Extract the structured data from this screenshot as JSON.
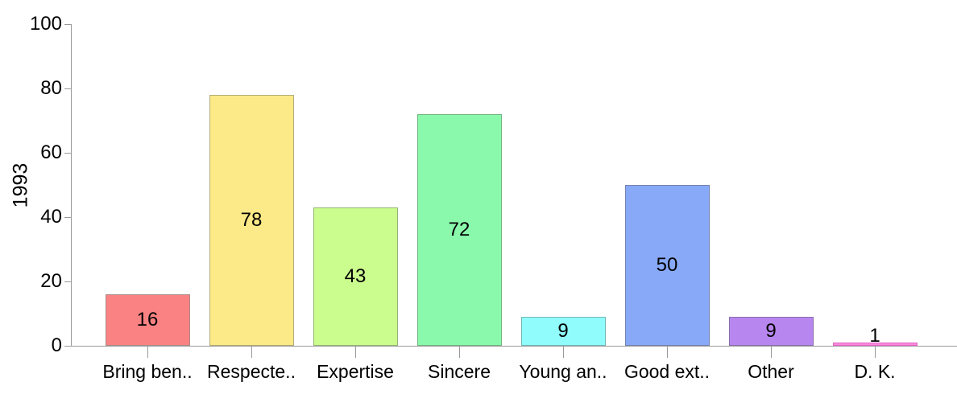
{
  "chart_data": {
    "type": "bar",
    "title": "",
    "xlabel": "",
    "ylabel": "1993",
    "ylim": [
      0,
      100
    ],
    "yticks": [
      0,
      20,
      40,
      60,
      80,
      100
    ],
    "grid": false,
    "legend": false,
    "categories": [
      "Bring ben..",
      "Respecte..",
      "Expertise",
      "Sincere",
      "Young an..",
      "Good ext..",
      "Other",
      "D. K."
    ],
    "values": [
      16,
      78,
      43,
      72,
      9,
      50,
      9,
      1
    ],
    "bar_colors": [
      "#FB8282",
      "#FCE987",
      "#CBFC8E",
      "#8AF9AB",
      "#90FCFC",
      "#87A9F7",
      "#B886EF",
      "#F88ADC"
    ],
    "bar_border_colors": [
      "#A98C8C",
      "#B2AC76",
      "#93B672",
      "#72B381",
      "#74B6B6",
      "#7381B0",
      "#8870AC",
      "#E863C5"
    ],
    "axis_color": "#999999",
    "text_color": "#000000"
  }
}
